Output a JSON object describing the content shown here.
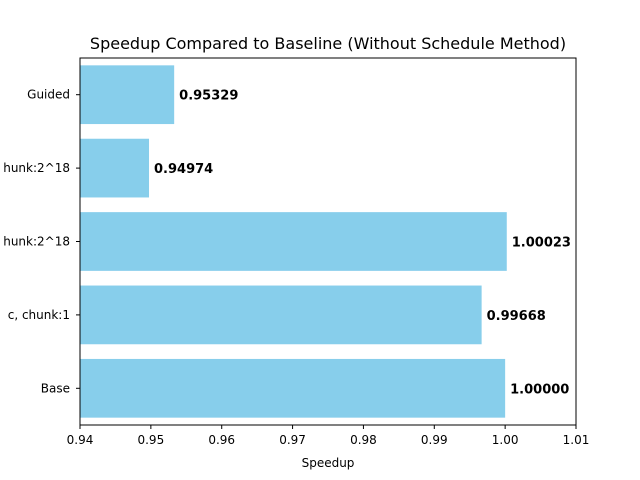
{
  "chart_data": {
    "type": "bar",
    "orientation": "horizontal",
    "title": "Speedup Compared to Baseline (Without Schedule Method)",
    "xlabel": "Speedup",
    "ylabel": "",
    "categories": [
      "Base",
      "c, chunk:1",
      "hunk:2^18",
      "hunk:2^18",
      "Guided"
    ],
    "values": [
      1.0,
      0.99668,
      1.00023,
      0.94974,
      0.95329
    ],
    "value_labels": [
      "1.00000",
      "0.99668",
      "1.00023",
      "0.94974",
      "0.95329"
    ],
    "xlim": [
      0.94,
      1.01
    ],
    "xticks": [
      "0.94",
      "0.95",
      "0.96",
      "0.97",
      "0.98",
      "0.99",
      "1.00",
      "1.01"
    ],
    "bar_color": "#87ceeb",
    "grid": false,
    "legend": false
  }
}
